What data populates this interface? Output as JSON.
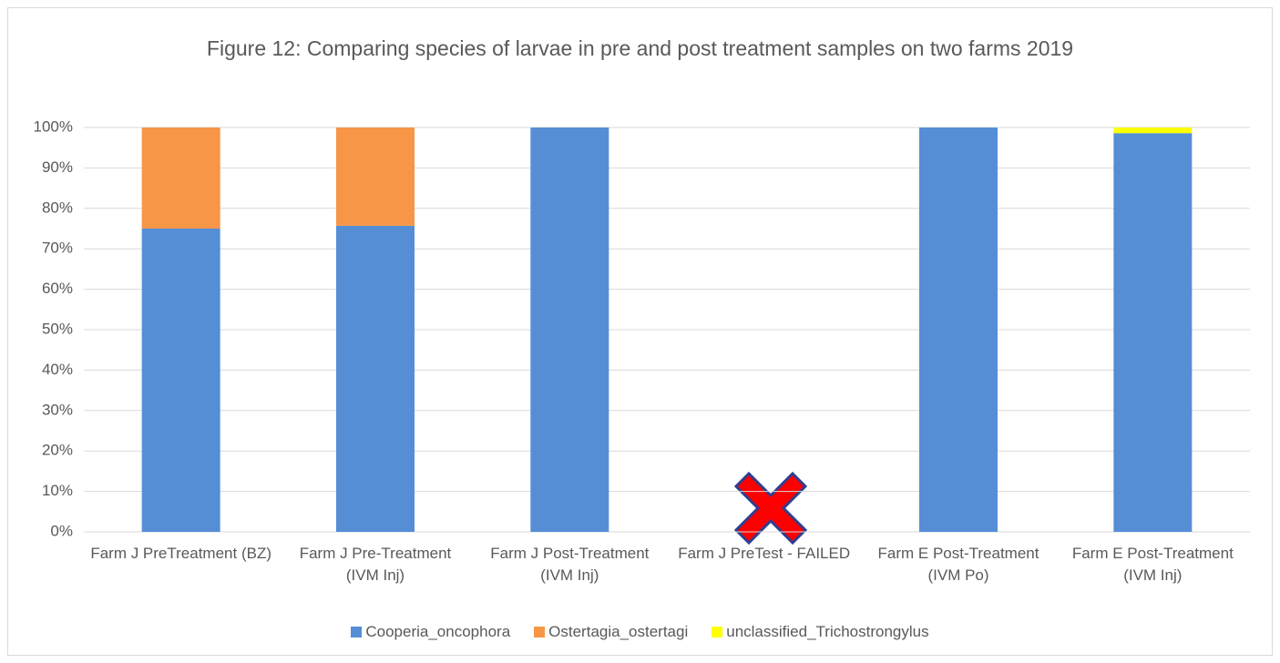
{
  "chart_data": {
    "type": "stacked_bar",
    "title": "Figure 12: Comparing species of larvae in pre and post treatment samples on two farms 2019",
    "categories": [
      "Farm J PreTreatment (BZ)",
      "Farm J Pre-Treatment (IVM Inj)",
      "Farm J Post-Treatment (IVM Inj)",
      "Farm J PreTest - FAILED",
      "Farm E Post-Treatment (IVM Po)",
      "Farm E Post-Treatment (IVM Inj)"
    ],
    "series": [
      {
        "name": "Cooperia_oncophora",
        "color": "#558ed5",
        "values": [
          75,
          75.7,
          100,
          null,
          100,
          98.6
        ]
      },
      {
        "name": "Ostertagia_ostertagi",
        "color": "#f79646",
        "values": [
          25,
          24.3,
          null,
          null,
          null,
          null
        ]
      },
      {
        "name": "unclassified_Trichostrongylus",
        "color": "#ffff00",
        "values": [
          null,
          null,
          null,
          null,
          null,
          1.4
        ]
      }
    ],
    "ylim": [
      0,
      100
    ],
    "yticks": [
      {
        "value": 0,
        "label": "0%"
      },
      {
        "value": 10,
        "label": "10%"
      },
      {
        "value": 20,
        "label": "20%"
      },
      {
        "value": 30,
        "label": "30%"
      },
      {
        "value": 40,
        "label": "40%"
      },
      {
        "value": 50,
        "label": "50%"
      },
      {
        "value": 60,
        "label": "60%"
      },
      {
        "value": 70,
        "label": "70%"
      },
      {
        "value": 80,
        "label": "80%"
      },
      {
        "value": 90,
        "label": "90%"
      },
      {
        "value": 100,
        "label": "100%"
      }
    ],
    "grid": true,
    "legend": "bottom"
  }
}
